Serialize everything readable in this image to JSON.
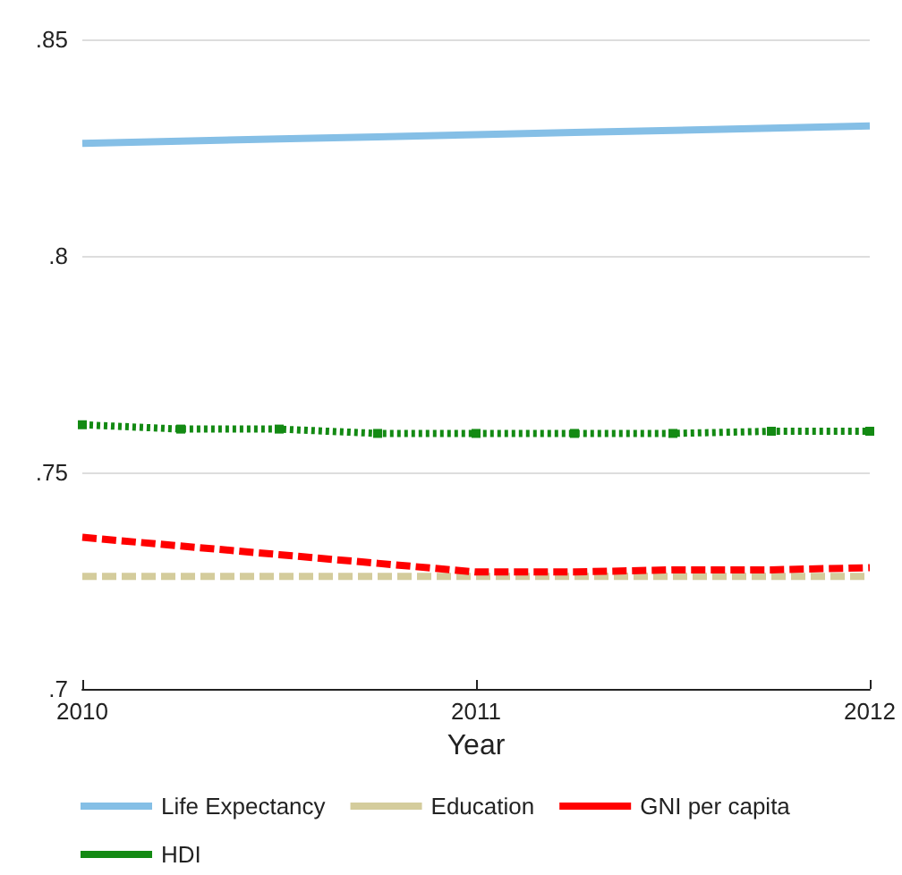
{
  "chart_data": {
    "type": "line",
    "xlabel": "Year",
    "x": [
      2010,
      2010.25,
      2010.5,
      2010.75,
      2011,
      2011.25,
      2011.5,
      2011.75,
      2012
    ],
    "series": [
      {
        "name": "Life Expectancy",
        "color": "#85bfe6",
        "line_style": "solid",
        "values": [
          0.826,
          0.8265,
          0.827,
          0.8275,
          0.828,
          0.8285,
          0.829,
          0.8295,
          0.83
        ]
      },
      {
        "name": "Education",
        "color": "#d4cc9c",
        "line_style": "dashed",
        "values": [
          0.726,
          0.726,
          0.726,
          0.726,
          0.726,
          0.726,
          0.726,
          0.726,
          0.726
        ]
      },
      {
        "name": "GNI per capita",
        "color": "#ff0000",
        "line_style": "dashed",
        "values": [
          0.735,
          0.733,
          0.731,
          0.729,
          0.727,
          0.727,
          0.7275,
          0.7275,
          0.728
        ]
      },
      {
        "name": "HDI",
        "color": "#138a13",
        "line_style": "dotted",
        "marker": "square",
        "values": [
          0.761,
          0.76,
          0.76,
          0.759,
          0.759,
          0.759,
          0.759,
          0.7595,
          0.7595
        ]
      }
    ],
    "xlim": [
      2010,
      2012
    ],
    "xticks": [
      2010,
      2011,
      2012
    ],
    "ylim": [
      0.7,
      0.85
    ],
    "yticks": [
      {
        "value": 0.7,
        "label": ".7"
      },
      {
        "value": 0.75,
        "label": ".75"
      },
      {
        "value": 0.8,
        "label": ".8"
      },
      {
        "value": 0.85,
        "label": ".85"
      }
    ],
    "grid": "y",
    "legend": "bottom"
  }
}
